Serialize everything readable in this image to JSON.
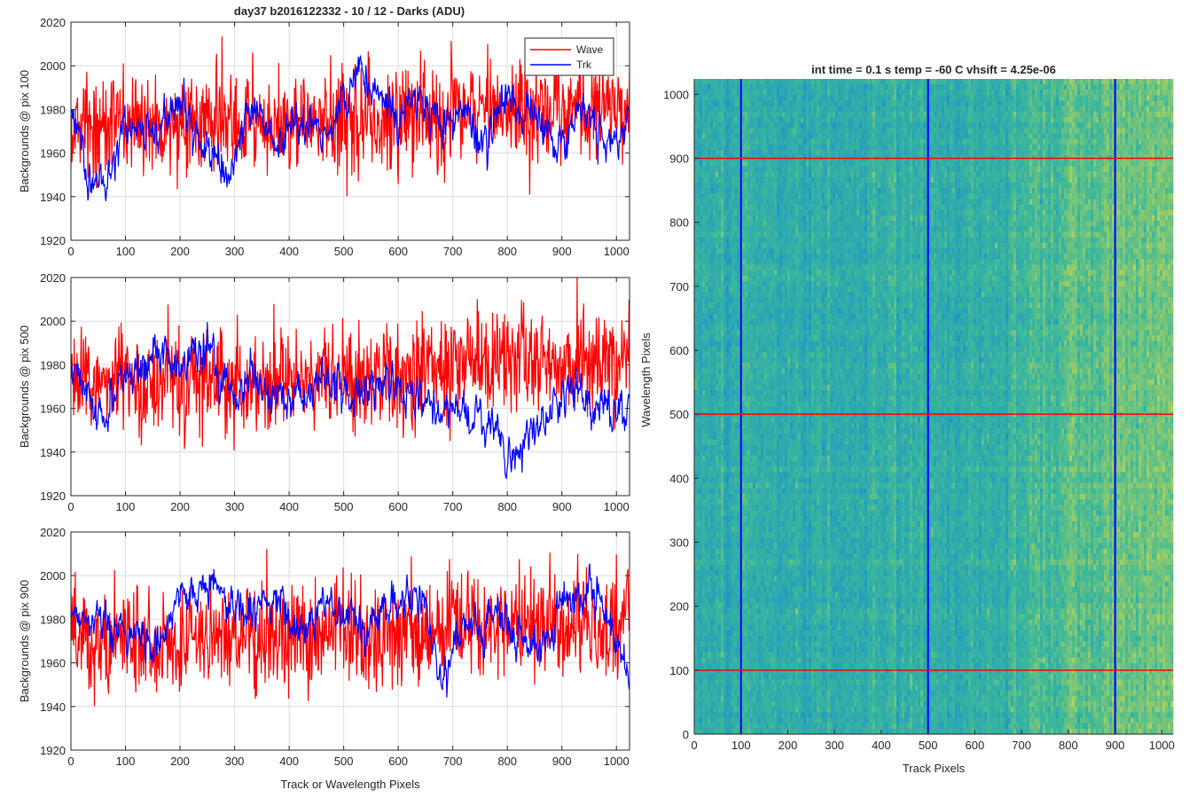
{
  "figure": {
    "title": "day37 b2016122332 - 10 / 12 - Darks (ADU)",
    "right_title": "int time = 0.1 s   temp = -60 C   vhsift = 4.25e-06"
  },
  "colors": {
    "wave": "#ff0000",
    "trk": "#0000ff",
    "grid": "#dcdcdc",
    "axis": "#262626",
    "heatmap_low": "#1e96c8",
    "heatmap_mid": "#3cb89a",
    "heatmap_high": "#b4d25a"
  },
  "chart_data": [
    {
      "type": "line",
      "title": "day37 b2016122332 - 10 / 12 - Darks (ADU)",
      "xlabel": "",
      "ylabel": "Backgrounds @ pix 100",
      "xlim": [
        0,
        1024
      ],
      "ylim": [
        1920,
        2020
      ],
      "xticks": [
        "0",
        "100",
        "200",
        "300",
        "400",
        "500",
        "600",
        "700",
        "800",
        "900",
        "1000"
      ],
      "yticks": [
        "1920",
        "1940",
        "1960",
        "1980",
        "2000",
        "2020"
      ],
      "grid": true,
      "legend": {
        "placement": "top-right",
        "entries": [
          "Wave",
          "Trk"
        ]
      },
      "series": [
        {
          "name": "Wave",
          "color": "#ff0000",
          "mean": 1975,
          "noise": 12,
          "drift": 0.005,
          "anchors": [
            [
              0,
              1972
            ],
            [
              200,
              1974
            ],
            [
              400,
              1973
            ],
            [
              600,
              1977
            ],
            [
              800,
              1980
            ],
            [
              1024,
              1982
            ]
          ]
        },
        {
          "name": "Trk",
          "color": "#0000ff",
          "mean": 1968,
          "noise": 4,
          "anchors": [
            [
              0,
              1980
            ],
            [
              30,
              1950
            ],
            [
              60,
              1945
            ],
            [
              100,
              1975
            ],
            [
              150,
              1970
            ],
            [
              200,
              1982
            ],
            [
              240,
              1965
            ],
            [
              290,
              1955
            ],
            [
              340,
              1985
            ],
            [
              380,
              1960
            ],
            [
              420,
              1975
            ],
            [
              470,
              1965
            ],
            [
              520,
              1995
            ],
            [
              560,
              1990
            ],
            [
              600,
              1975
            ],
            [
              640,
              1985
            ],
            [
              680,
              1970
            ],
            [
              720,
              1980
            ],
            [
              760,
              1965
            ],
            [
              800,
              1985
            ],
            [
              850,
              1975
            ],
            [
              900,
              1965
            ],
            [
              940,
              1985
            ],
            [
              980,
              1960
            ],
            [
              1024,
              1975
            ]
          ]
        }
      ]
    },
    {
      "type": "line",
      "title": "",
      "xlabel": "",
      "ylabel": "Backgrounds @ pix 500",
      "xlim": [
        0,
        1024
      ],
      "ylim": [
        1920,
        2020
      ],
      "xticks": [
        "0",
        "100",
        "200",
        "300",
        "400",
        "500",
        "600",
        "700",
        "800",
        "900",
        "1000"
      ],
      "yticks": [
        "1920",
        "1940",
        "1960",
        "1980",
        "2000",
        "2020"
      ],
      "grid": true,
      "series": [
        {
          "name": "Wave",
          "color": "#ff0000",
          "mean": 1975,
          "noise": 12,
          "anchors": [
            [
              0,
              1972
            ],
            [
              300,
              1972
            ],
            [
              600,
              1975
            ],
            [
              700,
              1982
            ],
            [
              1024,
              1982
            ]
          ]
        },
        {
          "name": "Trk",
          "color": "#0000ff",
          "mean": 1968,
          "noise": 4,
          "anchors": [
            [
              0,
              1980
            ],
            [
              60,
              1955
            ],
            [
              120,
              1980
            ],
            [
              160,
              1990
            ],
            [
              200,
              1975
            ],
            [
              240,
              1990
            ],
            [
              300,
              1965
            ],
            [
              350,
              1975
            ],
            [
              400,
              1960
            ],
            [
              460,
              1975
            ],
            [
              520,
              1965
            ],
            [
              580,
              1970
            ],
            [
              640,
              1965
            ],
            [
              680,
              1960
            ],
            [
              720,
              1955
            ],
            [
              780,
              1950
            ],
            [
              800,
              1935
            ],
            [
              840,
              1945
            ],
            [
              880,
              1960
            ],
            [
              920,
              1965
            ],
            [
              960,
              1960
            ],
            [
              1024,
              1960
            ]
          ]
        }
      ]
    },
    {
      "type": "line",
      "title": "",
      "xlabel": "Track or Wavelength Pixels",
      "ylabel": "Backgrounds @ pix 900",
      "xlim": [
        0,
        1024
      ],
      "ylim": [
        1920,
        2020
      ],
      "xticks": [
        "0",
        "100",
        "200",
        "300",
        "400",
        "500",
        "600",
        "700",
        "800",
        "900",
        "1000"
      ],
      "yticks": [
        "1920",
        "1940",
        "1960",
        "1980",
        "2000",
        "2020"
      ],
      "grid": true,
      "series": [
        {
          "name": "Wave",
          "color": "#ff0000",
          "mean": 1973,
          "noise": 12,
          "anchors": [
            [
              0,
              1970
            ],
            [
              400,
              1970
            ],
            [
              700,
              1975
            ],
            [
              1024,
              1978
            ]
          ]
        },
        {
          "name": "Trk",
          "color": "#0000ff",
          "mean": 1980,
          "noise": 4,
          "anchors": [
            [
              0,
              1985
            ],
            [
              60,
              1975
            ],
            [
              120,
              1975
            ],
            [
              160,
              1965
            ],
            [
              200,
              1990
            ],
            [
              260,
              1995
            ],
            [
              300,
              1985
            ],
            [
              340,
              1985
            ],
            [
              380,
              1990
            ],
            [
              420,
              1970
            ],
            [
              460,
              1990
            ],
            [
              500,
              1985
            ],
            [
              540,
              1975
            ],
            [
              600,
              1990
            ],
            [
              650,
              1985
            ],
            [
              680,
              1950
            ],
            [
              720,
              1975
            ],
            [
              780,
              1980
            ],
            [
              830,
              1975
            ],
            [
              870,
              1965
            ],
            [
              900,
              1990
            ],
            [
              950,
              1995
            ],
            [
              990,
              1980
            ],
            [
              1024,
              1950
            ]
          ]
        }
      ]
    },
    {
      "type": "heatmap",
      "title": "int time = 0.1 s   temp = -60 C   vhsift = 4.25e-06",
      "xlabel": "Track Pixels",
      "ylabel": "Wavelength Pixels",
      "xlim": [
        0,
        1024
      ],
      "ylim": [
        0,
        1024
      ],
      "xticks": [
        "0",
        "100",
        "200",
        "300",
        "400",
        "500",
        "600",
        "700",
        "800",
        "900",
        "1000"
      ],
      "yticks": [
        "0",
        "100",
        "200",
        "300",
        "400",
        "500",
        "600",
        "700",
        "800",
        "900",
        "1000"
      ],
      "vertical_lines": {
        "color": "#0000ff",
        "x": [
          100,
          500,
          900
        ]
      },
      "horizontal_lines": {
        "color": "#ff0000",
        "y": [
          100,
          500,
          900
        ]
      },
      "colormap": "parula"
    }
  ]
}
